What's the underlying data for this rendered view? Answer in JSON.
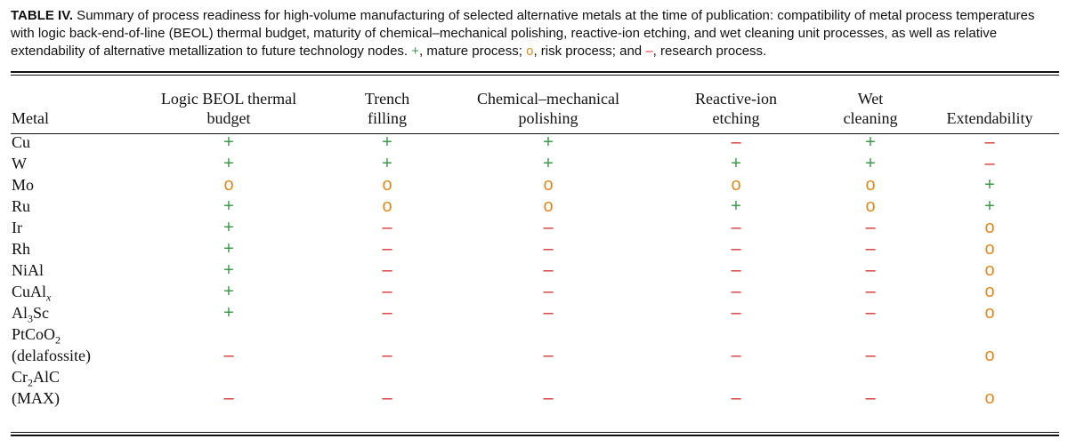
{
  "caption": {
    "label": "TABLE IV.",
    "text": " Summary of process readiness for high-volume manufacturing of selected alternative metals at the time of publication: compatibility of metal process temperatures with logic back-end-of-line (BEOL) thermal budget, maturity of chemical–mechanical polishing, reactive-ion etching, and wet cleaning unit processes, as well as relative extendability of alternative metallization to future technology nodes. ",
    "plus_symbol": "+",
    "plus_text": ", mature process; ",
    "circle_symbol": "o",
    "circle_text": ", risk process; and ",
    "minus_symbol": "–",
    "minus_text": ", research process."
  },
  "colors": {
    "mature": "#3a9a4a",
    "risk": "#e08a1e",
    "research": "#d63232"
  },
  "headers": {
    "metal": "Metal",
    "beol_1": "Logic BEOL thermal",
    "beol_2": "budget",
    "trench_1": "Trench",
    "trench_2": "filling",
    "cmp_1": "Chemical–mechanical",
    "cmp_2": "polishing",
    "rie_1": "Reactive-ion",
    "rie_2": "etching",
    "wet_1": "Wet",
    "wet_2": "cleaning",
    "ext": "Extendability"
  },
  "symbols": {
    "plus": "+",
    "risk": "o",
    "minus": "–"
  },
  "rows": [
    {
      "metal": "Cu",
      "values": [
        "plus",
        "plus",
        "plus",
        "minus",
        "plus",
        "minus"
      ]
    },
    {
      "metal": "W",
      "values": [
        "plus",
        "plus",
        "plus",
        "plus",
        "plus",
        "minus"
      ]
    },
    {
      "metal": "Mo",
      "values": [
        "risk",
        "risk",
        "risk",
        "risk",
        "risk",
        "plus"
      ]
    },
    {
      "metal": "Ru",
      "values": [
        "plus",
        "risk",
        "risk",
        "plus",
        "risk",
        "plus"
      ]
    },
    {
      "metal": "Ir",
      "values": [
        "plus",
        "minus",
        "minus",
        "minus",
        "minus",
        "risk"
      ]
    },
    {
      "metal": "Rh",
      "values": [
        "plus",
        "minus",
        "minus",
        "minus",
        "minus",
        "risk"
      ]
    },
    {
      "metal": "NiAl",
      "values": [
        "plus",
        "minus",
        "minus",
        "minus",
        "minus",
        "risk"
      ]
    },
    {
      "metal": "CuAl",
      "metal_sub": "x",
      "values": [
        "plus",
        "minus",
        "minus",
        "minus",
        "minus",
        "risk"
      ]
    },
    {
      "metal": "Al",
      "metal_sub": "3",
      "metal_rest": "Sc",
      "values": [
        "plus",
        "minus",
        "minus",
        "minus",
        "minus",
        "risk"
      ]
    },
    {
      "metal": "PtCoO",
      "metal_sub": "2",
      "metal_line2": "(delafossite)",
      "values": [
        "minus",
        "minus",
        "minus",
        "minus",
        "minus",
        "risk"
      ]
    },
    {
      "metal": "Cr",
      "metal_sub": "2",
      "metal_rest": "AlC",
      "metal_line2": "(MAX)",
      "values": [
        "minus",
        "minus",
        "minus",
        "minus",
        "minus",
        "risk"
      ]
    }
  ]
}
